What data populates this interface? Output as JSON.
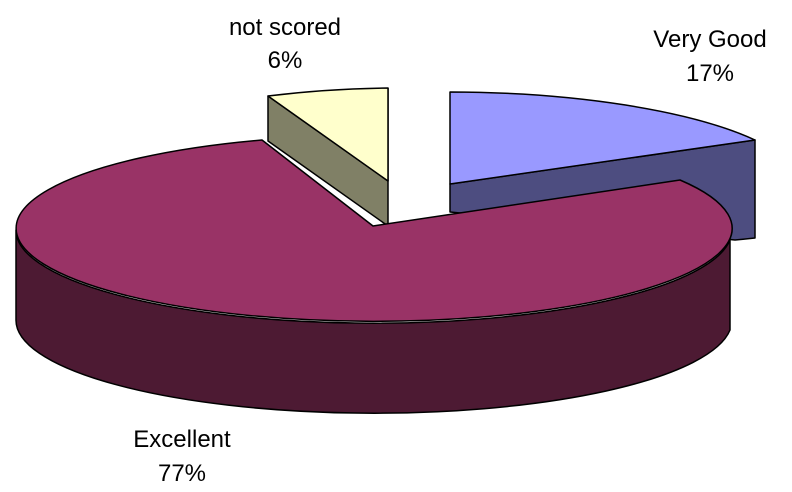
{
  "chart_data": {
    "type": "pie",
    "style": "3d-exploded",
    "title": "",
    "legend": "none",
    "slices": [
      {
        "label": "Very Good",
        "value": 17,
        "display": "17%",
        "color_top": "#9999ff",
        "color_side": "#4d4d80"
      },
      {
        "label": "Excellent",
        "value": 77,
        "display": "77%",
        "color_top": "#993366",
        "color_side": "#4d1a33"
      },
      {
        "label": "not scored",
        "value": 6,
        "display": "6%",
        "color_top": "#ffffcc",
        "color_side": "#808066"
      }
    ]
  }
}
